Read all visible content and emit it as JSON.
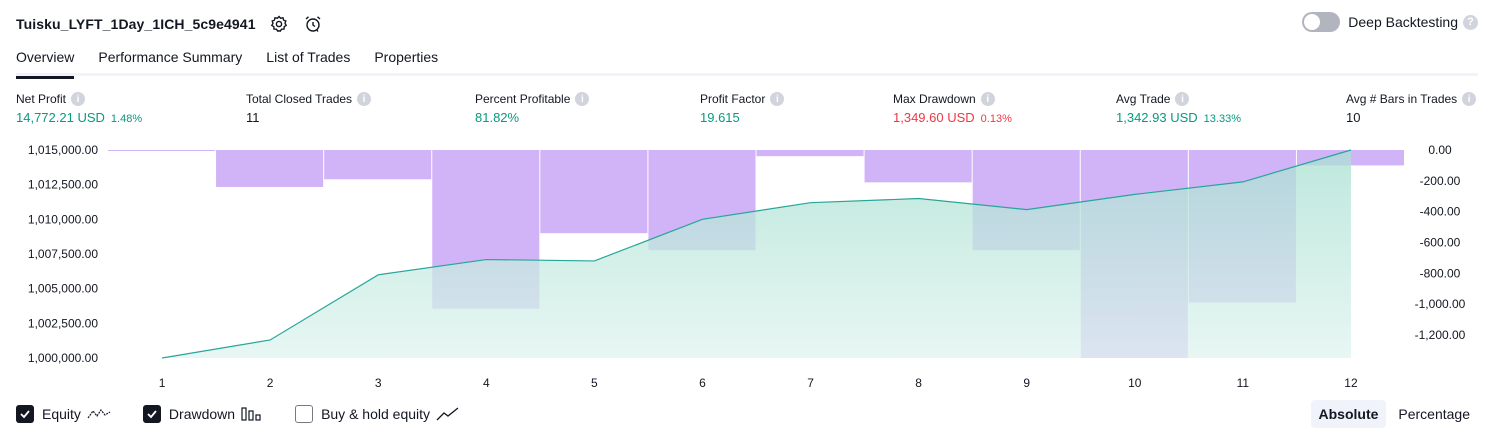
{
  "strategy": {
    "name": "Tuisku_LYFT_1Day_1ICH_5c9e4941"
  },
  "deep_backtesting": {
    "label": "Deep Backtesting",
    "help": "?"
  },
  "tabs": [
    {
      "label": "Overview"
    },
    {
      "label": "Performance Summary"
    },
    {
      "label": "List of Trades"
    },
    {
      "label": "Properties"
    }
  ],
  "metrics": {
    "net_profit": {
      "label": "Net Profit",
      "value": "14,772.21 USD",
      "sub": "1.48%"
    },
    "total_closed_trades": {
      "label": "Total Closed Trades",
      "value": "11"
    },
    "percent_profitable": {
      "label": "Percent Profitable",
      "value": "81.82%"
    },
    "profit_factor": {
      "label": "Profit Factor",
      "value": "19.615"
    },
    "max_drawdown": {
      "label": "Max Drawdown",
      "value": "1,349.60 USD",
      "sub": "0.13%"
    },
    "avg_trade": {
      "label": "Avg Trade",
      "value": "1,342.93 USD",
      "sub": "13.33%"
    },
    "avg_bars": {
      "label": "Avg # Bars in Trades",
      "value": "10"
    }
  },
  "chart_data": {
    "type": "area",
    "x": [
      1,
      2,
      3,
      4,
      5,
      6,
      7,
      8,
      9,
      10,
      11,
      12
    ],
    "series": [
      {
        "name": "Equity",
        "axis": "left",
        "values": [
          1000000,
          1001300,
          1006000,
          1007100,
          1007000,
          1010000,
          1011200,
          1011500,
          1010700,
          1011800,
          1012700,
          1015000
        ]
      },
      {
        "name": "Drawdown",
        "axis": "right",
        "values": [
          0,
          -240,
          -190,
          -1030,
          -540,
          -650,
          -40,
          -210,
          -650,
          -1350,
          -990,
          -100
        ]
      }
    ],
    "left_axis": {
      "ticks": [
        "1,000,000.00",
        "1,002,500.00",
        "1,005,000.00",
        "1,007,500.00",
        "1,010,000.00",
        "1,012,500.00",
        "1,015,000.00"
      ],
      "range": [
        1000000,
        1015000
      ]
    },
    "right_axis": {
      "ticks": [
        "0.00",
        "-200.00",
        "-400.00",
        "-600.00",
        "-800.00",
        "-1,000.00",
        "-1,200.00"
      ],
      "range": [
        -1350,
        0
      ]
    },
    "colors": {
      "equity_line": "#26a69a",
      "equity_fill": "#e0f4ef",
      "drawdown": "#d1b3f7"
    }
  },
  "legend": [
    {
      "label": "Equity",
      "checked": true,
      "icon": "equity-line-icon"
    },
    {
      "label": "Drawdown",
      "checked": true,
      "icon": "drawdown-bars-icon"
    },
    {
      "label": "Buy & hold equity",
      "checked": false,
      "icon": "buy-hold-line-icon"
    }
  ],
  "scale": {
    "absolute": "Absolute",
    "percentage": "Percentage"
  }
}
